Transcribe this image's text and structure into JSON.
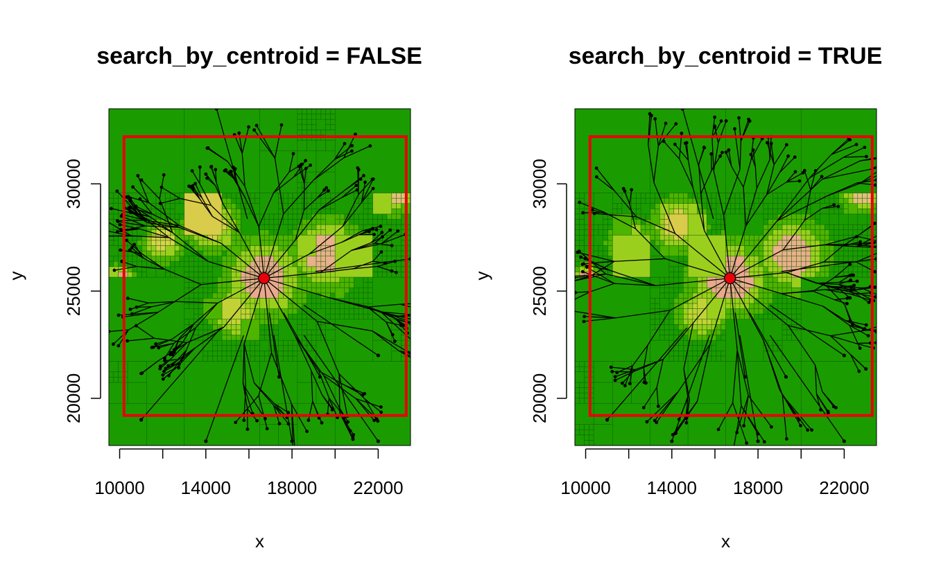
{
  "chart_data": [
    {
      "type": "other",
      "title": "search_by_centroid = FALSE",
      "xlabel": "x",
      "ylabel": "y",
      "xlim": [
        9500,
        23500
      ],
      "ylim": [
        17800,
        33500
      ],
      "xticks": [
        10000,
        12000,
        14000,
        16000,
        18000,
        20000,
        22000
      ],
      "xtick_labels": [
        "10000",
        "14000",
        "18000",
        "22000"
      ],
      "yticks": [
        20000,
        25000,
        30000
      ],
      "ytick_labels": [
        "20000",
        "25000",
        "30000"
      ],
      "search_extent": {
        "xmin": 10200,
        "xmax": 23300,
        "ymin": 19200,
        "ymax": 32200
      },
      "center_point": {
        "x": 16700,
        "y": 25600
      },
      "colors": {
        "background": "#1a9c00",
        "search_extent": "#e8000b",
        "center_point": "#e8000b",
        "paths": "#000000"
      }
    },
    {
      "type": "other",
      "title": "search_by_centroid = TRUE",
      "xlabel": "x",
      "ylabel": "y",
      "xlim": [
        9500,
        23500
      ],
      "ylim": [
        17800,
        33500
      ],
      "xticks": [
        10000,
        12000,
        14000,
        16000,
        18000,
        20000,
        22000
      ],
      "xtick_labels": [
        "10000",
        "14000",
        "18000",
        "22000"
      ],
      "yticks": [
        20000,
        25000,
        30000
      ],
      "ytick_labels": [
        "20000",
        "25000",
        "30000"
      ],
      "search_extent": {
        "xmin": 10200,
        "xmax": 23300,
        "ymin": 19200,
        "ymax": 32200
      },
      "center_point": {
        "x": 16700,
        "y": 25600
      },
      "colors": {
        "background": "#1a9c00",
        "search_extent": "#e8000b",
        "center_point": "#e8000b",
        "paths": "#000000"
      }
    }
  ]
}
